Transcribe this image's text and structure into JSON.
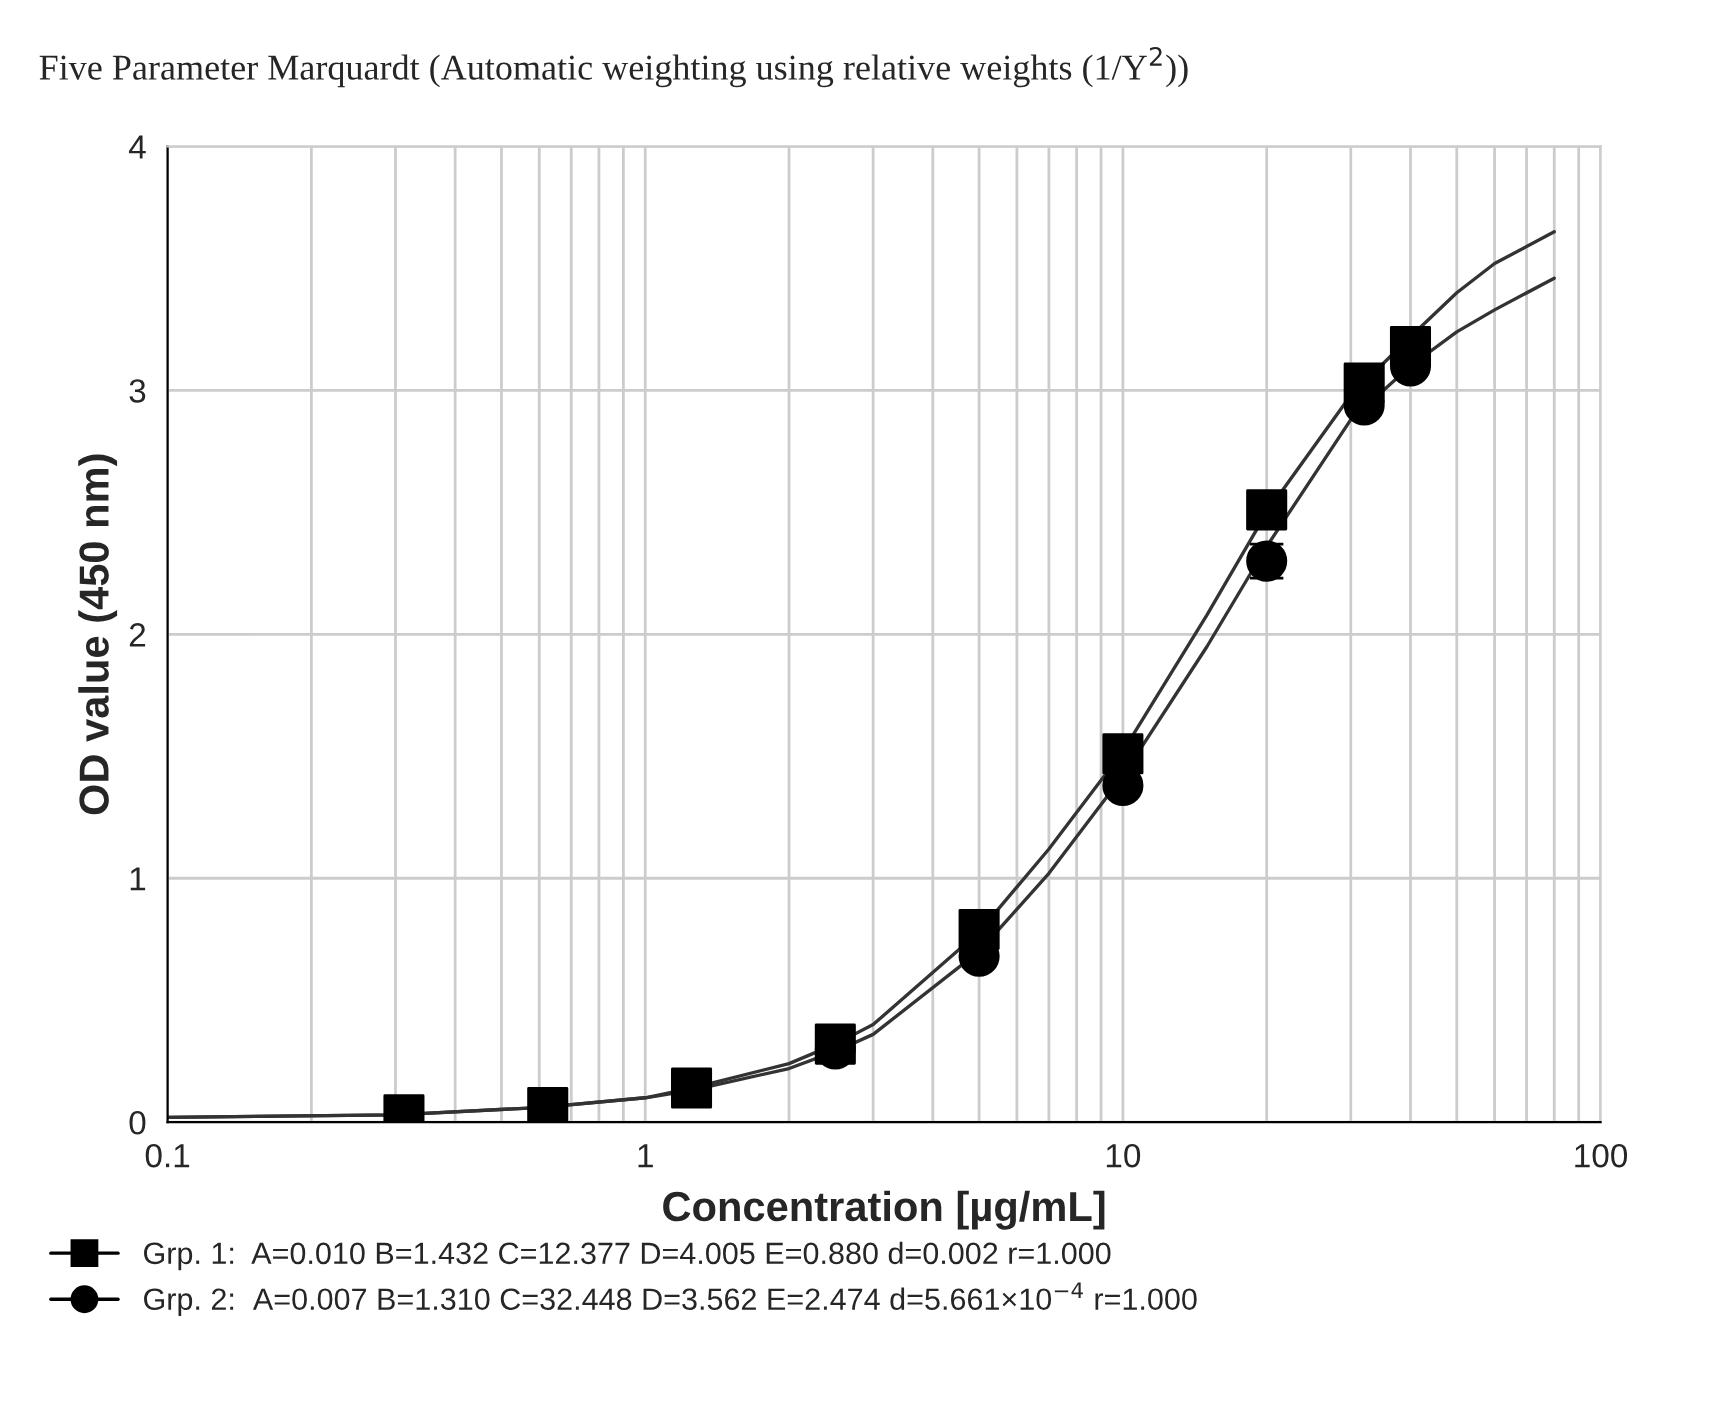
{
  "chart_data": {
    "type": "scatter",
    "title": "Five Parameter Marquardt (Automatic weighting using relative weights (1/Y$^{2}$))",
    "xlabel": "Concentration [µg/mL]",
    "ylabel": "OD value (450 nm)",
    "log": "x",
    "xlim": [
      0.1,
      100
    ],
    "xticks": [
      0.1,
      1,
      10,
      100
    ],
    "ylim": [
      0,
      4
    ],
    "yticks": [
      0,
      1,
      2,
      3,
      4
    ],
    "grid": true,
    "legend": "bottom left",
    "series": [
      {
        "type": "line",
        "color": "#333333",
        "marker": "none",
        "x": [
          0.1,
          0.3,
          0.6,
          1,
          1.25,
          2,
          2.5,
          3,
          5,
          7,
          10,
          15,
          20,
          30,
          40,
          50,
          60,
          80
        ],
        "values": [
          0.02,
          0.03,
          0.06,
          0.1,
          0.14,
          0.24,
          0.32,
          0.4,
          0.78,
          1.12,
          1.52,
          2.08,
          2.5,
          2.98,
          3.22,
          3.4,
          3.52,
          3.65
        ]
      },
      {
        "type": "line",
        "color": "#333333",
        "marker": "none",
        "x": [
          0.1,
          0.3,
          0.6,
          1,
          1.25,
          2,
          2.5,
          3,
          5,
          7,
          10,
          15,
          20,
          30,
          40,
          50,
          60,
          80
        ],
        "values": [
          0.02,
          0.03,
          0.06,
          0.1,
          0.13,
          0.22,
          0.29,
          0.36,
          0.7,
          1.02,
          1.42,
          1.95,
          2.36,
          2.88,
          3.1,
          3.24,
          3.33,
          3.46
        ]
      },
      {
        "name": "Grp. 1:  A=0.010 B=1.432 C=12.377 D=4.005 E=0.880 d=0.002 r=1.000",
        "color": "#000000",
        "marker": "square",
        "x": [
          0.3125,
          0.625,
          1.25,
          2.5,
          5,
          10,
          20,
          32,
          40
        ],
        "values": [
          0.03,
          0.06,
          0.14,
          0.32,
          0.79,
          1.51,
          2.51,
          3.03,
          3.18
        ]
      },
      {
        "name": "Grp. 2:  A=0.007 B=1.310 C=32.448 D=3.562 E=2.474 d=5.661×10$^{−4}$ r=1.000",
        "color": "#000000",
        "marker": "circle",
        "x": [
          2.5,
          5,
          10,
          20,
          32,
          40
        ],
        "values": [
          0.3,
          0.68,
          1.38,
          2.3,
          2.94,
          3.1
        ],
        "errors": [
          null,
          null,
          null,
          0.07,
          null,
          null
        ]
      }
    ]
  }
}
